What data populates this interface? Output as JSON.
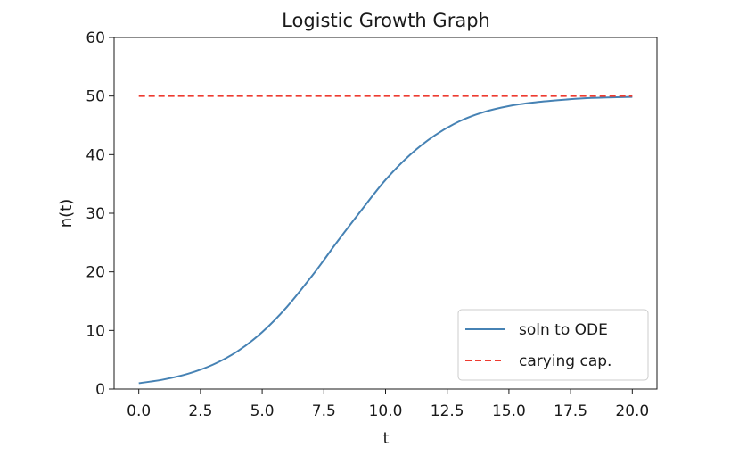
{
  "chart_data": {
    "type": "line",
    "title": "Logistic Growth Graph",
    "xlabel": "t",
    "ylabel": "n(t)",
    "xlim": [
      -1.0,
      21.0
    ],
    "ylim": [
      0,
      60
    ],
    "xticks": [
      "0.0",
      "2.5",
      "5.0",
      "7.5",
      "10.0",
      "12.5",
      "15.0",
      "17.5",
      "20.0"
    ],
    "yticks": [
      "0",
      "10",
      "20",
      "30",
      "40",
      "50",
      "60"
    ],
    "grid": false,
    "legend_position": "lower-right",
    "series": [
      {
        "name": "soln to ODE",
        "style": "solid",
        "color": "#4682b4",
        "x": [
          0,
          1,
          2,
          3,
          4,
          5,
          6,
          7,
          7.5,
          8,
          9,
          10,
          11,
          12,
          13,
          14,
          15,
          16,
          17,
          18,
          19,
          20
        ],
        "y": [
          1.0,
          1.63,
          2.62,
          4.15,
          6.44,
          9.7,
          14.0,
          19.2,
          22.0,
          24.9,
          30.4,
          35.7,
          40.0,
          43.3,
          45.7,
          47.3,
          48.3,
          48.9,
          49.3,
          49.6,
          49.75,
          49.85
        ]
      },
      {
        "name": "carying cap.",
        "style": "dashed",
        "color": "#ee3b30",
        "x": [
          0,
          20
        ],
        "y": [
          50,
          50
        ]
      }
    ]
  }
}
